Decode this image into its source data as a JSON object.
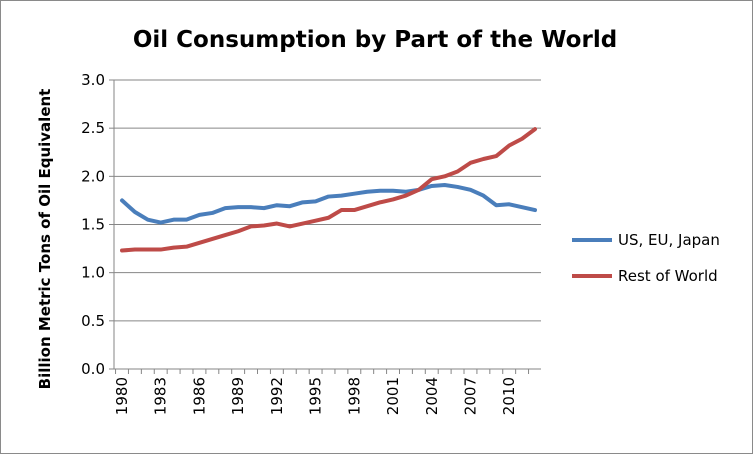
{
  "chart_data": {
    "type": "line",
    "title": "Oil Consumption by Part of the World",
    "xlabel": "",
    "ylabel": "Billion Metric Tons of Oil Equivalent",
    "ylim": [
      0,
      3.0
    ],
    "y_ticks": [
      "0.0",
      "0.5",
      "1.0",
      "1.5",
      "2.0",
      "2.5",
      "3.0"
    ],
    "x_tick_labels": [
      "1980",
      "1983",
      "1986",
      "1989",
      "1992",
      "1995",
      "1998",
      "2001",
      "2004",
      "2007",
      "2010"
    ],
    "x": [
      1980,
      1981,
      1982,
      1983,
      1984,
      1985,
      1986,
      1987,
      1988,
      1989,
      1990,
      1991,
      1992,
      1993,
      1994,
      1995,
      1996,
      1997,
      1998,
      1999,
      2000,
      2001,
      2002,
      2003,
      2004,
      2005,
      2006,
      2007,
      2008,
      2009,
      2010,
      2011,
      2012
    ],
    "grid": "horizontal",
    "legend_position": "right",
    "series": [
      {
        "name": "US, EU, Japan",
        "color": "#4a7ebb",
        "values": [
          1.75,
          1.63,
          1.55,
          1.52,
          1.55,
          1.55,
          1.6,
          1.62,
          1.67,
          1.68,
          1.68,
          1.67,
          1.7,
          1.69,
          1.73,
          1.74,
          1.79,
          1.8,
          1.82,
          1.84,
          1.85,
          1.85,
          1.84,
          1.86,
          1.9,
          1.91,
          1.89,
          1.86,
          1.8,
          1.7,
          1.71,
          1.68,
          1.65
        ]
      },
      {
        "name": "Rest of World",
        "color": "#be4b48",
        "values": [
          1.23,
          1.24,
          1.24,
          1.24,
          1.26,
          1.27,
          1.31,
          1.35,
          1.39,
          1.43,
          1.48,
          1.49,
          1.51,
          1.48,
          1.51,
          1.54,
          1.57,
          1.65,
          1.65,
          1.69,
          1.73,
          1.76,
          1.8,
          1.86,
          1.97,
          2.0,
          2.05,
          2.14,
          2.18,
          2.21,
          2.32,
          2.39,
          2.49
        ]
      }
    ]
  }
}
